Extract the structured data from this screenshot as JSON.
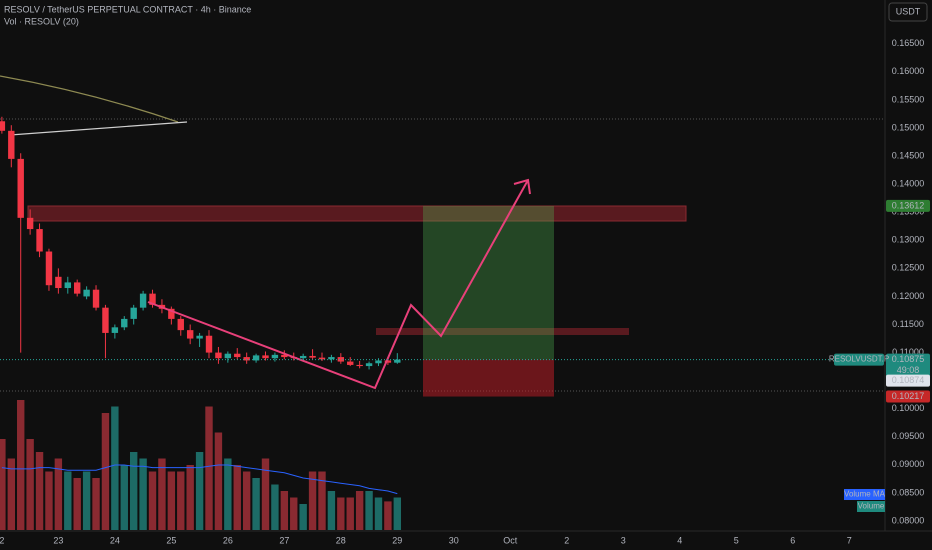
{
  "chart_data": {
    "type": "candlestick",
    "title": "RESOLV / TetherUS PERPETUAL CONTRACT · 4h · Binance",
    "volume_title": "Vol · RESOLV (20)",
    "currency": "USDT",
    "symbol": "RESOLVUSDT.P",
    "countdown": "49:08",
    "volume_ma_label": "Volume MA",
    "volume_label": "Volume",
    "up_color": "#26a69a",
    "down_color": "#f23645",
    "up_volume_color": "#1d6b66",
    "down_volume_color": "#8a2a31",
    "volume_ma_color": "#2962ff",
    "open": [
      0.1512,
      0.1495,
      0.1445,
      0.134,
      0.132,
      0.128,
      0.1235,
      0.1215,
      0.1225,
      0.12,
      0.1212,
      0.118,
      0.1135,
      0.1145,
      0.116,
      0.118,
      0.1205,
      0.1185,
      0.1178,
      0.116,
      0.114,
      0.1125,
      0.113,
      0.11,
      0.109,
      0.1098,
      0.1092,
      0.1086,
      0.1095,
      0.109,
      0.1096,
      0.1092,
      0.109,
      0.1094,
      0.1091,
      0.1088,
      0.1092,
      0.1084,
      0.1078,
      0.1076,
      0.1081,
      0.1086,
      0.1082
    ],
    "high": [
      0.152,
      0.1505,
      0.1455,
      0.1355,
      0.133,
      0.1285,
      0.125,
      0.1235,
      0.123,
      0.1218,
      0.122,
      0.1185,
      0.115,
      0.1165,
      0.1185,
      0.121,
      0.1212,
      0.1195,
      0.1182,
      0.1165,
      0.115,
      0.1135,
      0.114,
      0.111,
      0.1102,
      0.1108,
      0.11,
      0.1098,
      0.1102,
      0.11,
      0.1104,
      0.11,
      0.1098,
      0.1106,
      0.11,
      0.1096,
      0.1099,
      0.1092,
      0.1085,
      0.1084,
      0.109,
      0.1092,
      0.1099
    ],
    "low": [
      0.149,
      0.143,
      0.11,
      0.131,
      0.127,
      0.121,
      0.1205,
      0.1205,
      0.12,
      0.1195,
      0.1175,
      0.109,
      0.1125,
      0.114,
      0.115,
      0.1175,
      0.118,
      0.117,
      0.115,
      0.113,
      0.1115,
      0.111,
      0.109,
      0.108,
      0.1082,
      0.1088,
      0.108,
      0.1082,
      0.1086,
      0.1084,
      0.1088,
      0.1086,
      0.1084,
      0.1088,
      0.1085,
      0.1082,
      0.108,
      0.1076,
      0.1072,
      0.107,
      0.1076,
      0.1078,
      0.108
    ],
    "close": [
      0.1495,
      0.1445,
      0.134,
      0.132,
      0.128,
      0.122,
      0.1215,
      0.1225,
      0.1205,
      0.1212,
      0.118,
      0.1135,
      0.1145,
      0.116,
      0.118,
      0.1205,
      0.1185,
      0.1178,
      0.116,
      0.114,
      0.1125,
      0.113,
      0.11,
      0.109,
      0.1098,
      0.1092,
      0.1086,
      0.1095,
      0.109,
      0.1096,
      0.1092,
      0.109,
      0.1094,
      0.1091,
      0.1088,
      0.1092,
      0.1084,
      0.1078,
      0.1076,
      0.1081,
      0.1086,
      0.1082,
      0.10875
    ],
    "volume": [
      70,
      55,
      100,
      70,
      60,
      45,
      55,
      45,
      40,
      45,
      40,
      90,
      95,
      50,
      60,
      55,
      45,
      55,
      45,
      45,
      50,
      60,
      95,
      75,
      55,
      50,
      45,
      40,
      55,
      35,
      30,
      25,
      20,
      45,
      45,
      30,
      25,
      25,
      30,
      30,
      25,
      22,
      25
    ],
    "volume_ma": [
      48,
      47,
      47,
      47,
      48,
      48,
      47,
      46,
      46,
      46,
      46,
      48,
      50,
      50,
      49,
      49,
      48,
      48,
      48,
      48,
      48,
      48,
      49,
      50,
      50,
      49,
      48,
      47,
      46,
      45,
      44,
      42,
      40,
      39,
      38,
      37,
      36,
      35,
      34,
      32,
      31,
      30,
      28
    ],
    "ylim": [
      0.0784,
      0.1728
    ],
    "volume_ylim": [
      0,
      100
    ],
    "xlim": [
      -0.2,
      93.8
    ],
    "yticks": [
      {
        "value": 0.165,
        "label": "0.16500"
      },
      {
        "value": 0.16,
        "label": "0.16000"
      },
      {
        "value": 0.155,
        "label": "0.15500"
      },
      {
        "value": 0.15,
        "label": "0.15000"
      },
      {
        "value": 0.145,
        "label": "0.14500"
      },
      {
        "value": 0.14,
        "label": "0.14000"
      },
      {
        "value": 0.135,
        "label": "0.13500"
      },
      {
        "value": 0.13,
        "label": "0.13000"
      },
      {
        "value": 0.125,
        "label": "0.12500"
      },
      {
        "value": 0.12,
        "label": "0.12000"
      },
      {
        "value": 0.115,
        "label": "0.11500"
      },
      {
        "value": 0.11,
        "label": "0.11000"
      },
      {
        "value": 0.1,
        "label": "0.10000"
      },
      {
        "value": 0.095,
        "label": "0.09500"
      },
      {
        "value": 0.09,
        "label": "0.09000"
      },
      {
        "value": 0.085,
        "label": "0.08500"
      },
      {
        "value": 0.08,
        "label": "0.08000"
      }
    ],
    "xticks": [
      {
        "value": 0,
        "label": "2"
      },
      {
        "value": 6,
        "label": "23"
      },
      {
        "value": 12,
        "label": "24"
      },
      {
        "value": 18,
        "label": "25"
      },
      {
        "value": 24,
        "label": "26"
      },
      {
        "value": 30,
        "label": "27"
      },
      {
        "value": 36,
        "label": "28"
      },
      {
        "value": 42,
        "label": "29"
      },
      {
        "value": 48,
        "label": "30"
      },
      {
        "value": 54,
        "label": "Oct"
      },
      {
        "value": 60,
        "label": "2"
      },
      {
        "value": 66,
        "label": "3"
      },
      {
        "value": 72,
        "label": "4"
      },
      {
        "value": 78,
        "label": "5"
      },
      {
        "value": 84,
        "label": "6"
      },
      {
        "value": 90,
        "label": "7"
      }
    ],
    "target": 0.13612,
    "entry": 0.10875,
    "stop": 0.10217,
    "last_price": 0.10874,
    "grid": false
  }
}
